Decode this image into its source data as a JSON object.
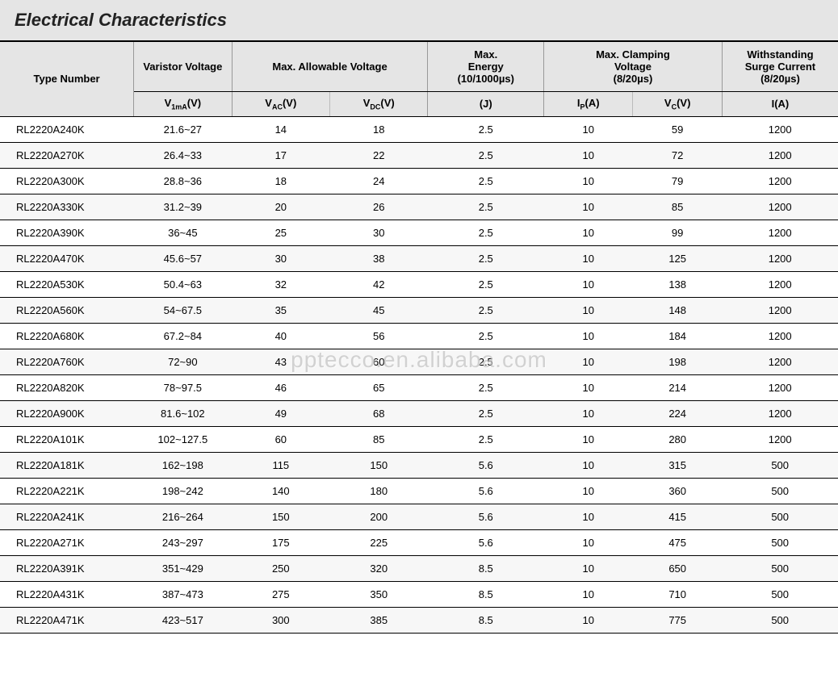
{
  "title": "Electrical Characteristics",
  "watermark": "pptecco.en.alibaba.com",
  "colors": {
    "header_bg": "#e5e5e5",
    "row_alt_bg": "#f7f7f7",
    "row_bg": "#ffffff",
    "border": "#000000",
    "text": "#222222"
  },
  "header_groups": [
    {
      "label": "Type Number",
      "span": 1,
      "slot": "g0"
    },
    {
      "label": "Varistor Voltage",
      "span": 1,
      "slot": "g1"
    },
    {
      "label": "Max. Allowable Voltage",
      "span": 2,
      "slot": "g2"
    },
    {
      "label": "Max. Energy (10/1000µs)",
      "span": 1,
      "slot": "g3"
    },
    {
      "label": "Max. Clamping Voltage (8/20µs)",
      "span": 2,
      "slot": "g4"
    },
    {
      "label": "Withstanding Surge Current (8/20µs)",
      "span": 1,
      "slot": "g5"
    }
  ],
  "sub_headers": {
    "c0": "",
    "c1": "V1mA(V)",
    "c2": "VAC(V)",
    "c3": "VDC(V)",
    "c4": "(J)",
    "c5": "IP(A)",
    "c6": "VC(V)",
    "c7": "I(A)"
  },
  "col_widths": [
    "150px",
    "110px",
    "110px",
    "110px",
    "130px",
    "100px",
    "100px",
    "130px"
  ],
  "rows": [
    {
      "c0": "RL2220A240K",
      "c1": "21.6~27",
      "c2": "14",
      "c3": "18",
      "c4": "2.5",
      "c5": "10",
      "c6": "59",
      "c7": "1200"
    },
    {
      "c0": "RL2220A270K",
      "c1": "26.4~33",
      "c2": "17",
      "c3": "22",
      "c4": "2.5",
      "c5": "10",
      "c6": "72",
      "c7": "1200"
    },
    {
      "c0": "RL2220A300K",
      "c1": "28.8~36",
      "c2": "18",
      "c3": "24",
      "c4": "2.5",
      "c5": "10",
      "c6": "79",
      "c7": "1200"
    },
    {
      "c0": "RL2220A330K",
      "c1": "31.2~39",
      "c2": "20",
      "c3": "26",
      "c4": "2.5",
      "c5": "10",
      "c6": "85",
      "c7": "1200"
    },
    {
      "c0": "RL2220A390K",
      "c1": "36~45",
      "c2": "25",
      "c3": "30",
      "c4": "2.5",
      "c5": "10",
      "c6": "99",
      "c7": "1200"
    },
    {
      "c0": "RL2220A470K",
      "c1": "45.6~57",
      "c2": "30",
      "c3": "38",
      "c4": "2.5",
      "c5": "10",
      "c6": "125",
      "c7": "1200"
    },
    {
      "c0": "RL2220A530K",
      "c1": "50.4~63",
      "c2": "32",
      "c3": "42",
      "c4": "2.5",
      "c5": "10",
      "c6": "138",
      "c7": "1200"
    },
    {
      "c0": "RL2220A560K",
      "c1": "54~67.5",
      "c2": "35",
      "c3": "45",
      "c4": "2.5",
      "c5": "10",
      "c6": "148",
      "c7": "1200"
    },
    {
      "c0": "RL2220A680K",
      "c1": "67.2~84",
      "c2": "40",
      "c3": "56",
      "c4": "2.5",
      "c5": "10",
      "c6": "184",
      "c7": "1200"
    },
    {
      "c0": "RL2220A760K",
      "c1": "72~90",
      "c2": "43",
      "c3": "60",
      "c4": "2.5",
      "c5": "10",
      "c6": "198",
      "c7": "1200"
    },
    {
      "c0": "RL2220A820K",
      "c1": "78~97.5",
      "c2": "46",
      "c3": "65",
      "c4": "2.5",
      "c5": "10",
      "c6": "214",
      "c7": "1200"
    },
    {
      "c0": "RL2220A900K",
      "c1": "81.6~102",
      "c2": "49",
      "c3": "68",
      "c4": "2.5",
      "c5": "10",
      "c6": "224",
      "c7": "1200"
    },
    {
      "c0": "RL2220A101K",
      "c1": "102~127.5",
      "c2": "60",
      "c3": "85",
      "c4": "2.5",
      "c5": "10",
      "c6": "280",
      "c7": "1200"
    },
    {
      "c0": "RL2220A181K",
      "c1": "162~198",
      "c2": "115",
      "c3": "150",
      "c4": "5.6",
      "c5": "10",
      "c6": "315",
      "c7": "500"
    },
    {
      "c0": "RL2220A221K",
      "c1": "198~242",
      "c2": "140",
      "c3": "180",
      "c4": "5.6",
      "c5": "10",
      "c6": "360",
      "c7": "500"
    },
    {
      "c0": "RL2220A241K",
      "c1": "216~264",
      "c2": "150",
      "c3": "200",
      "c4": "5.6",
      "c5": "10",
      "c6": "415",
      "c7": "500"
    },
    {
      "c0": "RL2220A271K",
      "c1": "243~297",
      "c2": "175",
      "c3": "225",
      "c4": "5.6",
      "c5": "10",
      "c6": "475",
      "c7": "500"
    },
    {
      "c0": "RL2220A391K",
      "c1": "351~429",
      "c2": "250",
      "c3": "320",
      "c4": "8.5",
      "c5": "10",
      "c6": "650",
      "c7": "500"
    },
    {
      "c0": "RL2220A431K",
      "c1": "387~473",
      "c2": "275",
      "c3": "350",
      "c4": "8.5",
      "c5": "10",
      "c6": "710",
      "c7": "500"
    },
    {
      "c0": "RL2220A471K",
      "c1": "423~517",
      "c2": "300",
      "c3": "385",
      "c4": "8.5",
      "c5": "10",
      "c6": "775",
      "c7": "500"
    }
  ]
}
